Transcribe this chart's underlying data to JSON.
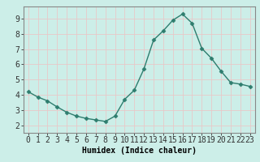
{
  "x": [
    0,
    1,
    2,
    3,
    4,
    5,
    6,
    7,
    8,
    9,
    10,
    11,
    12,
    13,
    14,
    15,
    16,
    17,
    18,
    19,
    20,
    21,
    22,
    23
  ],
  "y": [
    4.2,
    3.85,
    3.6,
    3.2,
    2.85,
    2.6,
    2.45,
    2.35,
    2.25,
    2.6,
    3.7,
    4.3,
    5.7,
    7.6,
    8.2,
    8.9,
    9.3,
    8.7,
    7.05,
    6.4,
    5.55,
    4.8,
    4.7,
    4.55
  ],
  "line_color": "#2e7d6e",
  "marker": "D",
  "marker_size": 2.5,
  "linewidth": 1.0,
  "bg_color": "#cceee8",
  "grid_color": "#e8c8c8",
  "axis_bg": "#cceee8",
  "xlabel": "Humidex (Indice chaleur)",
  "xlim": [
    -0.5,
    23.5
  ],
  "ylim": [
    1.5,
    9.8
  ],
  "yticks": [
    2,
    3,
    4,
    5,
    6,
    7,
    8,
    9
  ],
  "xticks": [
    0,
    1,
    2,
    3,
    4,
    5,
    6,
    7,
    8,
    9,
    10,
    11,
    12,
    13,
    14,
    15,
    16,
    17,
    18,
    19,
    20,
    21,
    22,
    23
  ],
  "xlabel_fontsize": 7,
  "tick_fontsize": 7,
  "spine_color": "#888888"
}
